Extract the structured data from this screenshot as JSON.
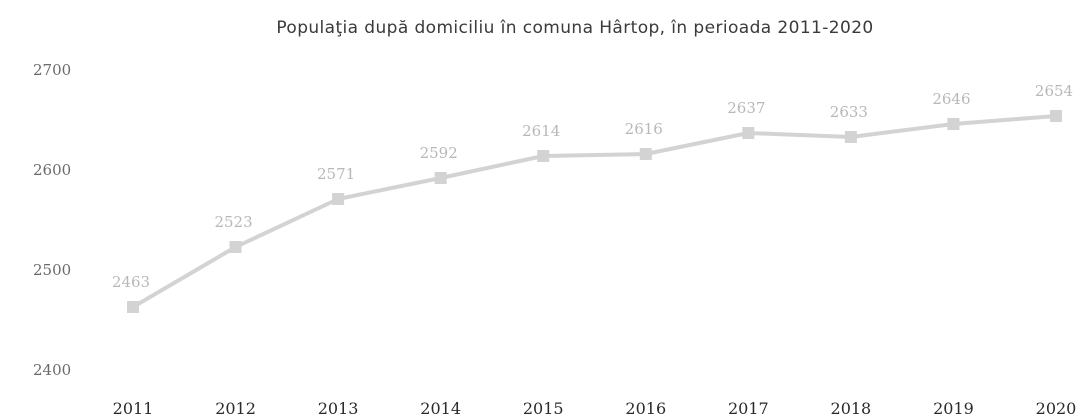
{
  "chart_data": {
    "type": "line",
    "title": "Populaţia după domiciliu în comuna Hârtop, în perioada 2011-2020",
    "xlabel": "",
    "ylabel": "",
    "categories": [
      "2011",
      "2012",
      "2013",
      "2014",
      "2015",
      "2016",
      "2017",
      "2018",
      "2019",
      "2020"
    ],
    "series": [
      {
        "values": [
          2463,
          2523,
          2571,
          2592,
          2614,
          2616,
          2637,
          2633,
          2646,
          2654
        ]
      }
    ],
    "yticks": [
      2400,
      2500,
      2600,
      2700
    ],
    "ylim": [
      2400,
      2700
    ],
    "grid": false,
    "legend": "none",
    "line_color": "#d3d3d3",
    "label_color": "#b8b8b8"
  }
}
